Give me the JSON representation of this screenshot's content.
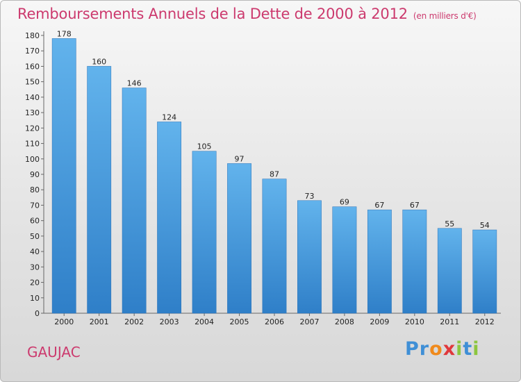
{
  "title": "Remboursements Annuels de la Dette de 2000 à 2012",
  "subtitle": "(en milliers d'€)",
  "commune": "GAUJAC",
  "logo": {
    "letters": [
      "P",
      "r",
      "o",
      "x",
      "i",
      "t",
      "i"
    ],
    "colors": [
      "#3f8fd6",
      "#3f8fd6",
      "#f08a1c",
      "#e0383c",
      "#8cc63f",
      "#3f8fd6",
      "#8cc63f"
    ]
  },
  "colors": {
    "bar": "#3f8fd6",
    "bar_light": "#5daee8",
    "title": "#cc3a6e"
  },
  "chart_data": {
    "type": "bar",
    "title": "Remboursements Annuels de la Dette de 2000 à 2012",
    "subtitle": "(en milliers d'€)",
    "categories": [
      "2000",
      "2001",
      "2002",
      "2003",
      "2004",
      "2005",
      "2006",
      "2007",
      "2008",
      "2009",
      "2010",
      "2011",
      "2012"
    ],
    "values": [
      178,
      160,
      146,
      124,
      105,
      97,
      87,
      73,
      69,
      67,
      67,
      55,
      54
    ],
    "ylim": [
      0,
      180
    ],
    "yticks": [
      0,
      10,
      20,
      30,
      40,
      50,
      60,
      70,
      80,
      90,
      100,
      110,
      120,
      130,
      140,
      150,
      160,
      170,
      180
    ],
    "grid": false,
    "data_labels": true
  }
}
